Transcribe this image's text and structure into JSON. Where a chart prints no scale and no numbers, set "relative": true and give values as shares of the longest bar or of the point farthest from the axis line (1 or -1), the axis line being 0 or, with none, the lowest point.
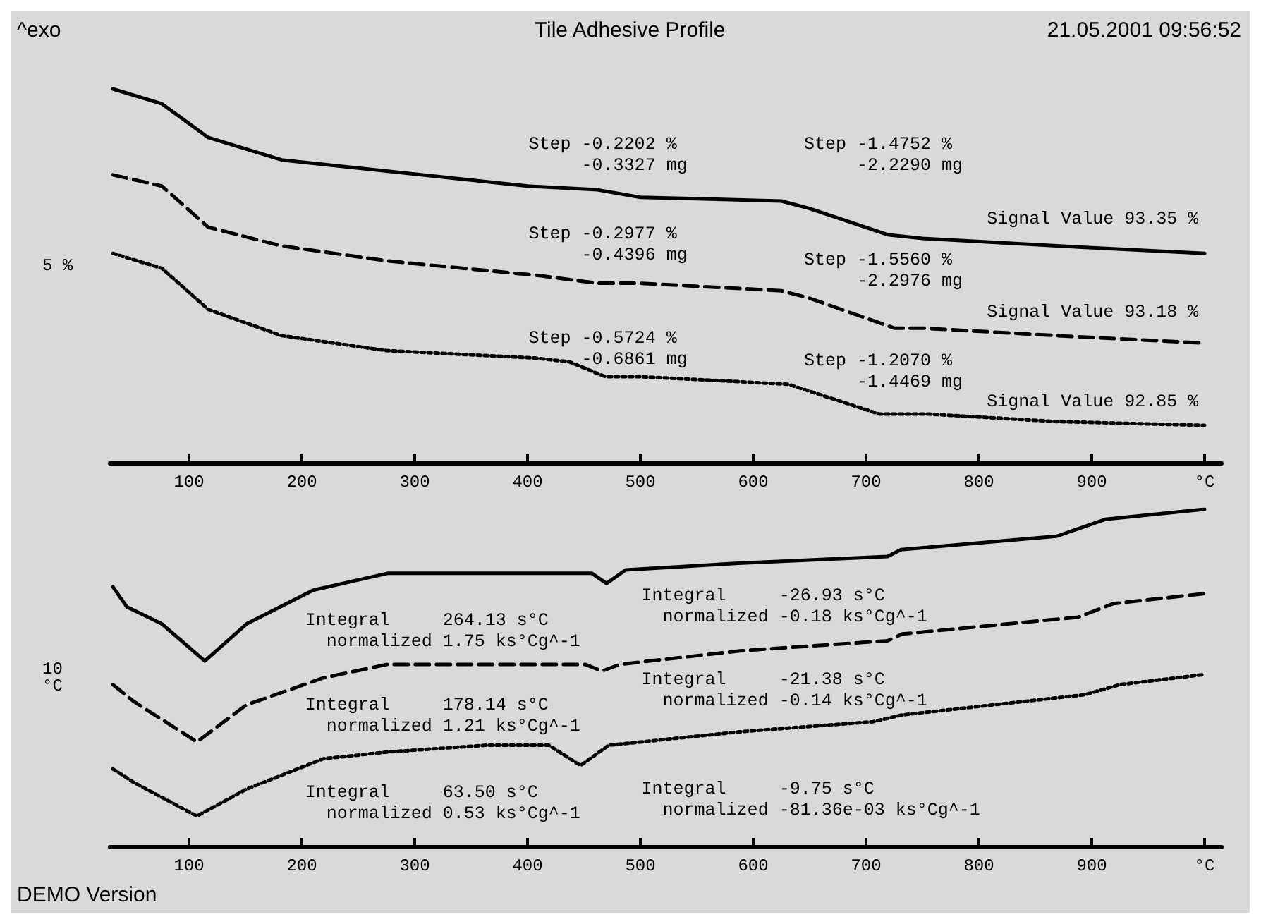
{
  "chart_data": [
    {
      "type": "line",
      "title": "Tile Adhesive Profile",
      "ylabel": "5 %",
      "relative": true,
      "xlim": [
        30,
        1015
      ],
      "xticks": [
        100,
        200,
        300,
        400,
        500,
        600,
        700,
        800,
        900,
        {
          "value": 1000,
          "label": "°C"
        }
      ],
      "grid": false,
      "marker": "none",
      "series": [
        {
          "color": "#000000",
          "line_style": "solid",
          "x": [
            32.5,
            76,
            117,
            182,
            275,
            400,
            462,
            500,
            625,
            650,
            719,
            750,
            869,
            1000
          ],
          "values": [
            1.0,
            0.96,
            0.87,
            0.81,
            0.78,
            0.74,
            0.73,
            0.71,
            0.7,
            0.68,
            0.61,
            0.6,
            0.58,
            0.56
          ]
        },
        {
          "color": "#000000",
          "line_style": "dashed",
          "x": [
            32.5,
            76,
            117,
            182,
            275,
            412,
            462,
            500,
            625,
            650,
            725,
            750,
            869,
            1000
          ],
          "values": [
            0.77,
            0.74,
            0.63,
            0.58,
            0.54,
            0.5,
            0.48,
            0.48,
            0.46,
            0.44,
            0.36,
            0.36,
            0.34,
            0.32
          ]
        },
        {
          "color": "#000000",
          "line_style": "dotted",
          "x": [
            32.5,
            76,
            117,
            182,
            275,
            406,
            437,
            469,
            500,
            631,
            712,
            756,
            869,
            1000
          ],
          "values": [
            0.56,
            0.52,
            0.41,
            0.34,
            0.3,
            0.28,
            0.27,
            0.23,
            0.23,
            0.21,
            0.13,
            0.13,
            0.11,
            0.1
          ]
        }
      ],
      "annotations": [
        "^exo",
        "21.05.2001 09:56:52",
        "Step -0.2202 %\n     -0.3327 mg",
        "Step -1.4752 %\n     -2.2290 mg",
        "Signal Value 93.35 %",
        "Step -0.2977 %\n     -0.4396 mg",
        "Step -1.5560 %\n     -2.2976 mg",
        "Signal Value 93.18 %",
        "Step -0.5724 %\n     -0.6861 mg",
        "Step -1.2070 %\n     -1.4469 mg",
        "Signal Value 92.85 %"
      ]
    },
    {
      "type": "line",
      "ylabel": "10 °C",
      "relative": true,
      "xlim": [
        30,
        1015
      ],
      "xticks": [
        100,
        200,
        300,
        400,
        500,
        600,
        700,
        800,
        900,
        {
          "value": 1000,
          "label": "°C"
        }
      ],
      "grid": false,
      "marker": "none",
      "series": [
        {
          "color": "#000000",
          "line_style": "solid",
          "x": [
            32.5,
            45,
            76,
            114,
            151,
            210,
            276,
            372,
            457,
            470,
            487,
            587,
            719,
            731,
            869,
            912,
            1000
          ],
          "values": [
            0.77,
            0.71,
            0.66,
            0.55,
            0.66,
            0.76,
            0.81,
            0.81,
            0.81,
            0.78,
            0.82,
            0.84,
            0.86,
            0.88,
            0.92,
            0.97,
            1.0
          ]
        },
        {
          "color": "#000000",
          "line_style": "dashed",
          "x": [
            32.5,
            51,
            107,
            151,
            219,
            276,
            363,
            451,
            466,
            482,
            588,
            719,
            732,
            888,
            919,
            1000
          ],
          "values": [
            0.48,
            0.43,
            0.31,
            0.42,
            0.5,
            0.54,
            0.54,
            0.54,
            0.52,
            0.54,
            0.58,
            0.61,
            0.63,
            0.68,
            0.72,
            0.75
          ]
        },
        {
          "color": "#000000",
          "line_style": "dotted",
          "x": [
            32.5,
            51,
            107,
            151,
            219,
            276,
            363,
            419,
            447,
            472,
            588,
            706,
            732,
            894,
            925,
            1000
          ],
          "values": [
            0.23,
            0.19,
            0.09,
            0.17,
            0.26,
            0.28,
            0.3,
            0.3,
            0.24,
            0.3,
            0.34,
            0.37,
            0.39,
            0.45,
            0.48,
            0.51
          ]
        }
      ],
      "annotations": [
        "DEMO Version",
        "Integral     264.13 s°C\n  normalized 1.75 ks°Cg^-1",
        "Integral     -26.93 s°C\n  normalized -0.18 ks°Cg^-1",
        "Integral     178.14 s°C\n  normalized 1.21 ks°Cg^-1",
        "Integral     -21.38 s°C\n  normalized -0.14 ks°Cg^-1",
        "Integral     63.50 s°C\n  normalized 0.53 ks°Cg^-1",
        "Integral     -9.75 s°C\n  normalized -81.36e-03 ks°Cg^-1"
      ]
    }
  ]
}
